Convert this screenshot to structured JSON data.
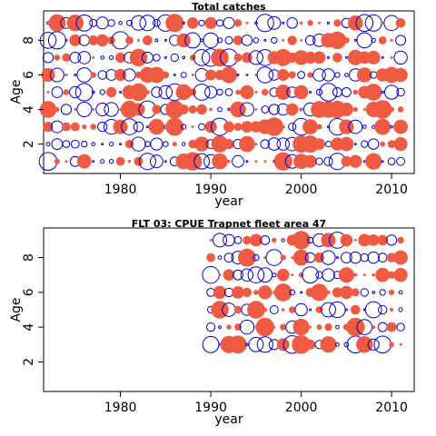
{
  "chart_data": [
    {
      "type": "scatter",
      "title": "Total catches",
      "xlabel": "year",
      "ylabel": "Age",
      "xlim": [
        1971.5,
        2012.5
      ],
      "ylim": [
        0.3,
        9.7
      ],
      "x_ticks": [
        1980,
        1990,
        2000,
        2010
      ],
      "y_ticks": [
        2,
        4,
        6,
        8
      ],
      "year_range": [
        1972,
        2011
      ],
      "age_range": [
        1,
        9
      ],
      "grid": false,
      "legend": "none",
      "colors": {
        "positive": "#ee5a42",
        "negative": "#0000cc"
      },
      "encoding_note": "bubble residuals"
    },
    {
      "type": "scatter",
      "title": "FLT 03: CPUE Trapnet fleet area 47",
      "xlabel": "year",
      "ylabel": "Age",
      "xlim": [
        1971.5,
        2012.5
      ],
      "ylim": [
        0.3,
        9.7
      ],
      "x_ticks": [
        1980,
        1990,
        2000,
        2010
      ],
      "y_ticks": [
        2,
        4,
        6,
        8
      ],
      "year_range": [
        1990,
        2011
      ],
      "age_range": [
        3,
        9
      ],
      "grid": false,
      "legend": "none",
      "colors": {
        "positive": "#ee5a42",
        "negative": "#0000cc"
      }
    }
  ]
}
